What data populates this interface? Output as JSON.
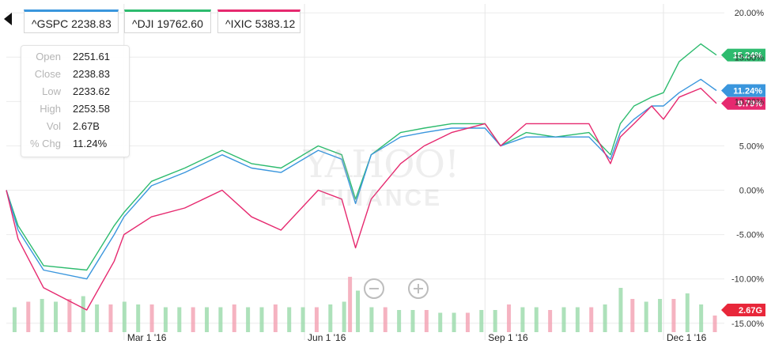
{
  "tabs": [
    {
      "label": "^GSPC 2238.83",
      "color": "#3a96dd"
    },
    {
      "label": "^DJI 19762.60",
      "color": "#2dbb6e"
    },
    {
      "label": "^IXIC 5383.12",
      "color": "#e6296f"
    }
  ],
  "ohlc": [
    {
      "label": "Open",
      "value": "2251.61"
    },
    {
      "label": "Close",
      "value": "2238.83"
    },
    {
      "label": "Low",
      "value": "2233.62"
    },
    {
      "label": "High",
      "value": "2253.58"
    },
    {
      "label": "Vol",
      "value": "2.67B"
    },
    {
      "label": "% Chg",
      "value": "11.24%"
    }
  ],
  "watermark": {
    "line1": "YAHOO!",
    "line2": "FINANCE"
  },
  "chart_data": {
    "type": "line",
    "x_range": [
      "2016-01-01",
      "2016-12-28"
    ],
    "ylim": [
      -16,
      21
    ],
    "y_ticks": [
      "20.00%",
      "15.00%",
      "10.00%",
      "5.00%",
      "0.00%",
      "-5.00%",
      "-10.00%",
      "-15.00%"
    ],
    "y_tick_values": [
      20,
      15,
      10,
      5,
      0,
      -5,
      -10,
      -15
    ],
    "x_ticks": [
      {
        "date": "2016-03-01",
        "label": "Mar 1 '16"
      },
      {
        "date": "2016-06-01",
        "label": "Jun 1 '16"
      },
      {
        "date": "2016-09-01",
        "label": "Sep 1 '16"
      },
      {
        "date": "2016-12-01",
        "label": "Dec 1 '16"
      }
    ],
    "grid": true,
    "series": [
      {
        "name": "^DJI",
        "color": "#2dbb6e",
        "end_badge": "15.24%",
        "points": [
          [
            "2016-01-01",
            0
          ],
          [
            "2016-01-07",
            -4
          ],
          [
            "2016-01-20",
            -8.5
          ],
          [
            "2016-02-11",
            -9
          ],
          [
            "2016-02-25",
            -4
          ],
          [
            "2016-03-01",
            -2.5
          ],
          [
            "2016-03-15",
            1
          ],
          [
            "2016-04-01",
            2.5
          ],
          [
            "2016-04-20",
            4.5
          ],
          [
            "2016-05-05",
            3
          ],
          [
            "2016-05-20",
            2.5
          ],
          [
            "2016-06-08",
            5
          ],
          [
            "2016-06-20",
            4
          ],
          [
            "2016-06-27",
            -1
          ],
          [
            "2016-07-05",
            4
          ],
          [
            "2016-07-20",
            6.5
          ],
          [
            "2016-08-01",
            7
          ],
          [
            "2016-08-15",
            7.5
          ],
          [
            "2016-09-01",
            7.5
          ],
          [
            "2016-09-09",
            5
          ],
          [
            "2016-09-22",
            6.5
          ],
          [
            "2016-10-07",
            6
          ],
          [
            "2016-10-24",
            6.5
          ],
          [
            "2016-11-04",
            4
          ],
          [
            "2016-11-09",
            7.5
          ],
          [
            "2016-11-16",
            9.5
          ],
          [
            "2016-11-25",
            10.5
          ],
          [
            "2016-12-01",
            11
          ],
          [
            "2016-12-09",
            14.5
          ],
          [
            "2016-12-20",
            16.5
          ],
          [
            "2016-12-28",
            15.24
          ]
        ]
      },
      {
        "name": "^GSPC",
        "color": "#3a96dd",
        "end_badge": "11.24%",
        "points": [
          [
            "2016-01-01",
            0
          ],
          [
            "2016-01-07",
            -4.5
          ],
          [
            "2016-01-20",
            -9
          ],
          [
            "2016-02-11",
            -10
          ],
          [
            "2016-02-25",
            -5
          ],
          [
            "2016-03-01",
            -3
          ],
          [
            "2016-03-15",
            0.5
          ],
          [
            "2016-04-01",
            2
          ],
          [
            "2016-04-20",
            4
          ],
          [
            "2016-05-05",
            2.5
          ],
          [
            "2016-05-20",
            2
          ],
          [
            "2016-06-08",
            4.5
          ],
          [
            "2016-06-20",
            3.5
          ],
          [
            "2016-06-27",
            -1.5
          ],
          [
            "2016-07-05",
            4
          ],
          [
            "2016-07-20",
            6
          ],
          [
            "2016-08-01",
            6.5
          ],
          [
            "2016-08-15",
            7
          ],
          [
            "2016-09-01",
            7
          ],
          [
            "2016-09-09",
            5
          ],
          [
            "2016-09-22",
            6
          ],
          [
            "2016-10-07",
            6
          ],
          [
            "2016-10-24",
            6
          ],
          [
            "2016-11-04",
            3.5
          ],
          [
            "2016-11-09",
            6.5
          ],
          [
            "2016-11-16",
            8
          ],
          [
            "2016-11-25",
            9.5
          ],
          [
            "2016-12-01",
            9.5
          ],
          [
            "2016-12-09",
            11
          ],
          [
            "2016-12-20",
            12.5
          ],
          [
            "2016-12-28",
            11.24
          ]
        ]
      },
      {
        "name": "^IXIC",
        "color": "#e6296f",
        "end_badge": "9.79%",
        "points": [
          [
            "2016-01-01",
            0
          ],
          [
            "2016-01-07",
            -5.5
          ],
          [
            "2016-01-20",
            -11
          ],
          [
            "2016-02-11",
            -13.5
          ],
          [
            "2016-02-25",
            -8
          ],
          [
            "2016-03-01",
            -5
          ],
          [
            "2016-03-15",
            -3
          ],
          [
            "2016-04-01",
            -2
          ],
          [
            "2016-04-20",
            0
          ],
          [
            "2016-05-05",
            -3
          ],
          [
            "2016-05-20",
            -4.5
          ],
          [
            "2016-06-08",
            0
          ],
          [
            "2016-06-20",
            -1
          ],
          [
            "2016-06-27",
            -6.5
          ],
          [
            "2016-07-05",
            -1
          ],
          [
            "2016-07-20",
            3
          ],
          [
            "2016-08-01",
            5
          ],
          [
            "2016-08-15",
            6.5
          ],
          [
            "2016-09-01",
            7.5
          ],
          [
            "2016-09-09",
            5
          ],
          [
            "2016-09-22",
            7.5
          ],
          [
            "2016-10-07",
            7.5
          ],
          [
            "2016-10-24",
            7.5
          ],
          [
            "2016-11-04",
            3
          ],
          [
            "2016-11-09",
            6
          ],
          [
            "2016-11-16",
            7.5
          ],
          [
            "2016-11-25",
            9.5
          ],
          [
            "2016-12-01",
            8
          ],
          [
            "2016-12-09",
            10.5
          ],
          [
            "2016-12-20",
            11.5
          ],
          [
            "2016-12-28",
            9.79
          ]
        ]
      }
    ],
    "volume": {
      "badge": "2.67G",
      "badge_color": "#e8273a",
      "up_color": "#9fdcae",
      "down_color": "#f3a6b6",
      "bars": [
        [
          "2016-01-05",
          0.45
        ],
        [
          "2016-01-12",
          0.55
        ],
        [
          "2016-01-19",
          0.6
        ],
        [
          "2016-01-26",
          0.55
        ],
        [
          "2016-02-02",
          0.6
        ],
        [
          "2016-02-09",
          0.65
        ],
        [
          "2016-02-16",
          0.5
        ],
        [
          "2016-02-23",
          0.5
        ],
        [
          "2016-03-01",
          0.55
        ],
        [
          "2016-03-08",
          0.5
        ],
        [
          "2016-03-15",
          0.5
        ],
        [
          "2016-03-22",
          0.45
        ],
        [
          "2016-03-29",
          0.45
        ],
        [
          "2016-04-05",
          0.45
        ],
        [
          "2016-04-12",
          0.45
        ],
        [
          "2016-04-19",
          0.45
        ],
        [
          "2016-04-26",
          0.5
        ],
        [
          "2016-05-03",
          0.45
        ],
        [
          "2016-05-10",
          0.45
        ],
        [
          "2016-05-17",
          0.5
        ],
        [
          "2016-05-24",
          0.45
        ],
        [
          "2016-05-31",
          0.45
        ],
        [
          "2016-06-07",
          0.45
        ],
        [
          "2016-06-14",
          0.5
        ],
        [
          "2016-06-21",
          0.55
        ],
        [
          "2016-06-24",
          1.0
        ],
        [
          "2016-06-28",
          0.75
        ],
        [
          "2016-07-05",
          0.45
        ],
        [
          "2016-07-12",
          0.45
        ],
        [
          "2016-07-19",
          0.4
        ],
        [
          "2016-07-26",
          0.4
        ],
        [
          "2016-08-02",
          0.4
        ],
        [
          "2016-08-09",
          0.35
        ],
        [
          "2016-08-16",
          0.35
        ],
        [
          "2016-08-23",
          0.35
        ],
        [
          "2016-08-30",
          0.4
        ],
        [
          "2016-09-06",
          0.4
        ],
        [
          "2016-09-13",
          0.5
        ],
        [
          "2016-09-20",
          0.45
        ],
        [
          "2016-09-27",
          0.45
        ],
        [
          "2016-10-04",
          0.4
        ],
        [
          "2016-10-11",
          0.45
        ],
        [
          "2016-10-18",
          0.45
        ],
        [
          "2016-10-25",
          0.45
        ],
        [
          "2016-11-01",
          0.5
        ],
        [
          "2016-11-09",
          0.8
        ],
        [
          "2016-11-15",
          0.6
        ],
        [
          "2016-11-22",
          0.55
        ],
        [
          "2016-11-29",
          0.6
        ],
        [
          "2016-12-06",
          0.6
        ],
        [
          "2016-12-13",
          0.7
        ],
        [
          "2016-12-20",
          0.5
        ],
        [
          "2016-12-27",
          0.3
        ]
      ]
    }
  }
}
